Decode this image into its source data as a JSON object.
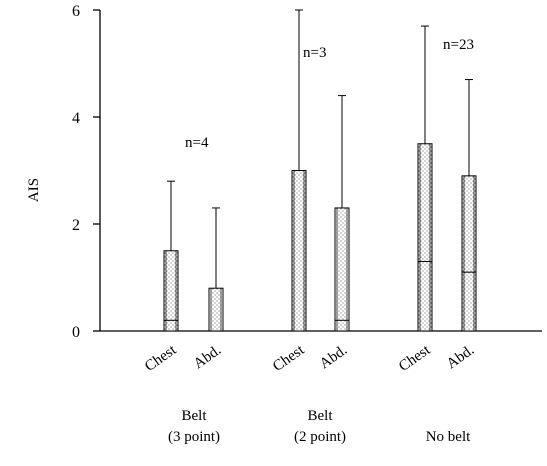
{
  "chart_data": {
    "type": "bar",
    "ylabel": "AIS",
    "ylim": [
      0,
      6
    ],
    "yticks": [
      "0",
      "2",
      "4",
      "6"
    ],
    "grid": false,
    "bar_pattern": "stippled",
    "groups": [
      {
        "label_line1": "Belt",
        "label_line2": "(3 point)",
        "annotation": "n=4",
        "bars": [
          {
            "category": "Chest",
            "value": 1.5,
            "lower": 0.2,
            "error_upper": 2.8
          },
          {
            "category": "Abd.",
            "value": 0.8,
            "lower": 0.0,
            "error_upper": 2.3
          }
        ]
      },
      {
        "label_line1": "Belt",
        "label_line2": "(2 point)",
        "annotation": "n=3",
        "bars": [
          {
            "category": "Chest",
            "value": 3.0,
            "lower": 0.0,
            "error_upper": 6.0
          },
          {
            "category": "Abd.",
            "value": 2.3,
            "lower": 0.2,
            "error_upper": 4.4
          }
        ]
      },
      {
        "label_line1": "No belt",
        "label_line2": "",
        "annotation": "n=23",
        "bars": [
          {
            "category": "Chest",
            "value": 3.5,
            "lower": 1.3,
            "error_upper": 5.7
          },
          {
            "category": "Abd.",
            "value": 2.9,
            "lower": 1.1,
            "error_upper": 4.7
          }
        ]
      }
    ]
  }
}
